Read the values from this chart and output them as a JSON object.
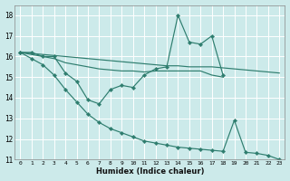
{
  "xlabel": "Humidex (Indice chaleur)",
  "background_color": "#cceaea",
  "grid_color": "#ffffff",
  "line_color": "#2e7d6e",
  "ylim": [
    11,
    18.5
  ],
  "xlim": [
    -0.5,
    23.5
  ],
  "series": [
    {
      "x": [
        0,
        1,
        2,
        3,
        4,
        5,
        6,
        7,
        8,
        9,
        10,
        11,
        12,
        13,
        14,
        15,
        16,
        17,
        18
      ],
      "y": [
        16.2,
        16.2,
        16.0,
        16.0,
        15.2,
        14.8,
        13.9,
        13.7,
        14.4,
        14.6,
        14.5,
        15.1,
        15.4,
        15.5,
        18.0,
        16.7,
        16.6,
        17.0,
        15.1
      ],
      "has_markers": true
    },
    {
      "x": [
        0,
        1,
        2,
        3,
        4,
        5,
        6,
        7,
        8,
        9,
        10,
        11,
        12,
        13,
        14,
        15,
        16,
        17,
        18,
        19,
        20,
        21,
        22,
        23
      ],
      "y": [
        16.2,
        16.15,
        16.1,
        16.05,
        16.0,
        15.95,
        15.9,
        15.85,
        15.8,
        15.75,
        15.7,
        15.65,
        15.6,
        15.55,
        15.55,
        15.5,
        15.5,
        15.5,
        15.45,
        15.4,
        15.35,
        15.3,
        15.25,
        15.2
      ],
      "has_markers": false
    },
    {
      "x": [
        0,
        1,
        2,
        3,
        4,
        5,
        6,
        7,
        8,
        9,
        10,
        11,
        12,
        13,
        14,
        15,
        16,
        17,
        18
      ],
      "y": [
        16.2,
        16.1,
        16.0,
        15.9,
        15.7,
        15.6,
        15.5,
        15.4,
        15.35,
        15.3,
        15.3,
        15.25,
        15.3,
        15.3,
        15.3,
        15.3,
        15.3,
        15.1,
        15.0
      ],
      "has_markers": false
    },
    {
      "x": [
        0,
        1,
        2,
        3,
        4,
        5,
        6,
        7,
        8,
        9,
        10,
        11,
        12,
        13,
        14,
        15,
        16,
        17,
        18,
        19,
        20,
        21,
        22,
        23
      ],
      "y": [
        16.2,
        15.9,
        15.6,
        15.1,
        14.4,
        13.8,
        13.2,
        12.8,
        12.5,
        12.3,
        12.1,
        11.9,
        11.8,
        11.7,
        11.6,
        11.55,
        11.5,
        11.45,
        11.4,
        12.9,
        11.35,
        11.3,
        11.2,
        11.0
      ],
      "has_markers": true
    }
  ]
}
